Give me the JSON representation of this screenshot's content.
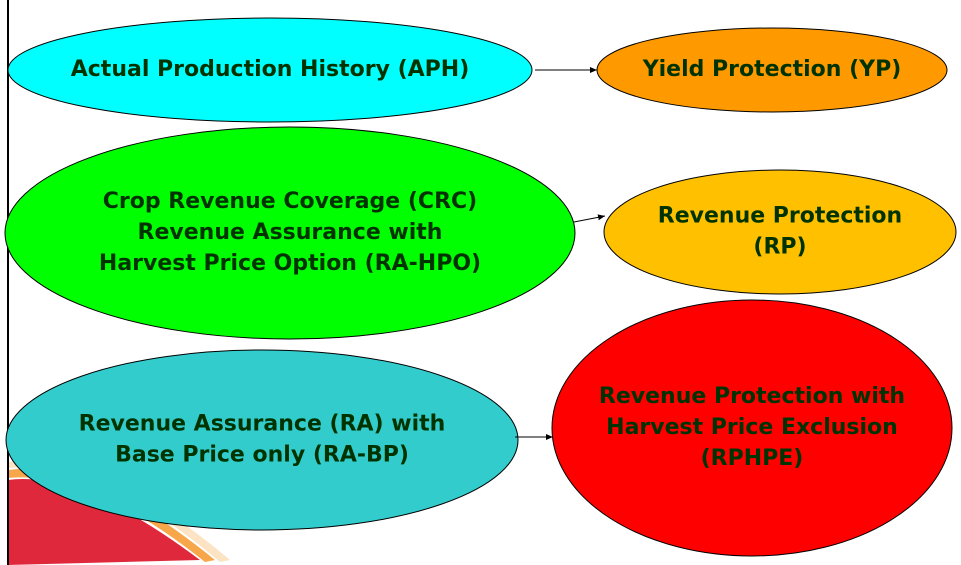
{
  "nodes": [
    {
      "lines": [
        "Actual Production History (APH)"
      ]
    },
    {
      "lines": [
        "Yield Protection (YP)"
      ]
    },
    {
      "lines": [
        "Crop Revenue Coverage (CRC)",
        "Revenue Assurance with",
        "Harvest Price Option (RA-HPO)"
      ]
    },
    {
      "lines": [
        "Revenue Protection",
        "(RP)"
      ]
    },
    {
      "lines": [
        "Revenue Assurance (RA) with",
        "Base Price only (RA-BP)"
      ]
    },
    {
      "lines": [
        "Revenue Protection with",
        "Harvest Price Exclusion",
        "(RPHPE)"
      ]
    }
  ]
}
